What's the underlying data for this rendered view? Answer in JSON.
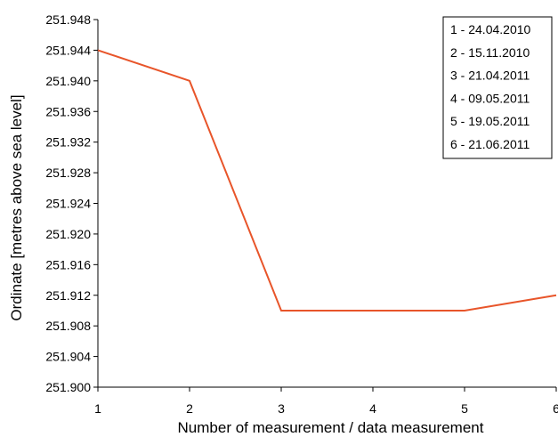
{
  "chart_data": {
    "type": "line",
    "xlabel": "Number of measurement / data measurement",
    "ylabel": "Ordinate [metres above sea level]",
    "x": [
      1,
      2,
      3,
      4,
      5,
      6
    ],
    "xlim": [
      1,
      6
    ],
    "ylim": [
      251.9,
      251.948
    ],
    "x_ticks": [
      "1",
      "2",
      "3",
      "4",
      "5",
      "6"
    ],
    "y_ticks": [
      "251.900",
      "251.904",
      "251.908",
      "251.912",
      "251.916",
      "251.920",
      "251.924",
      "251.928",
      "251.932",
      "251.936",
      "251.940",
      "251.944",
      "251.948"
    ],
    "series": [
      {
        "values": [
          251.944,
          251.94,
          251.91,
          251.91,
          251.91,
          251.912
        ],
        "color": "#e8552a"
      }
    ],
    "legend": {
      "placement": "top-right",
      "entries": [
        "1 - 24.04.2010",
        "2 - 15.11.2010",
        "3 - 21.04.2011",
        "4 - 09.05.2011",
        "5 - 19.05.2011",
        "6 - 21.06.2011"
      ]
    },
    "grid": false
  }
}
